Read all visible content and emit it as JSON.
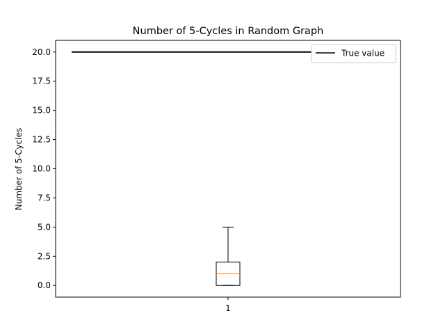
{
  "chart_data": {
    "type": "box",
    "title": "Number of 5-Cycles in Random Graph",
    "xlabel": "",
    "ylabel": "Number of 5-Cycles",
    "categories": [
      "1"
    ],
    "boxes": [
      {
        "category": "1",
        "whisker_low": 0.0,
        "q1": 0.0,
        "median": 1.0,
        "q3": 2.0,
        "whisker_high": 5.0
      }
    ],
    "reference_line": {
      "label": "True value",
      "y": 20.0,
      "color": "#000000"
    },
    "ylim": [
      -1.0,
      21.0
    ],
    "yticks": [
      "0.0",
      "2.5",
      "5.0",
      "7.5",
      "10.0",
      "12.5",
      "15.0",
      "17.5",
      "20.0"
    ],
    "ytick_values": [
      0.0,
      2.5,
      5.0,
      7.5,
      10.0,
      12.5,
      15.0,
      17.5,
      20.0
    ],
    "legend": {
      "position": "top-right",
      "entries": [
        "True value"
      ]
    },
    "grid": false,
    "colors": {
      "median": "#ff7f0e",
      "box": "#000000",
      "reference": "#000000"
    }
  }
}
